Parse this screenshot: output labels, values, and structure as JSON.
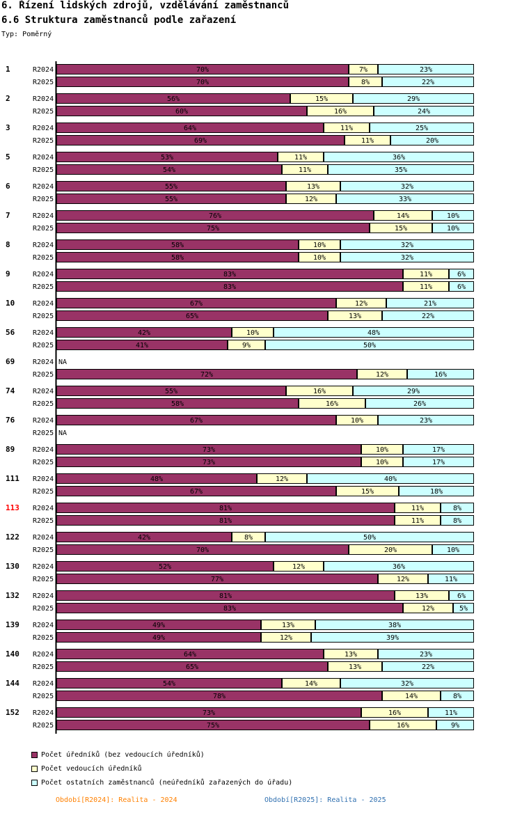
{
  "title": "6. Řízení lidských zdrojů, vzdělávání zaměstnanců",
  "subtitle": "6.6 Struktura zaměstnanců podle zařazení",
  "type_line": "Typ: Poměrný",
  "periods": [
    {
      "label": "Období[R2024]: Realita - 2024",
      "color": "#ff8000"
    },
    {
      "label": "Období[R2025]: Realita - 2025",
      "color": "#3070b0"
    }
  ],
  "legend": [
    {
      "label": "Počet úředníků (bez vedoucích úředníků)",
      "color": "#993366"
    },
    {
      "label": "Počet vedoucích úředníků",
      "color": "#ffffcc"
    },
    {
      "label": "Počet ostatních zaměstnanců (neúředníků zařazených do úřadu)",
      "color": "#ccffff"
    }
  ],
  "colors": {
    "series1": "#993366",
    "series2": "#ffffcc",
    "series3": "#ccffff",
    "highlight": "#ff0000"
  },
  "chart_data": {
    "type": "bar",
    "orientation": "horizontal",
    "stacked": true,
    "percent": true,
    "xlim": [
      0,
      100
    ],
    "series_names": [
      "Počet úředníků (bez vedoucích úředníků)",
      "Počet vedoucích úředníků",
      "Počet ostatních zaměstnanců (neúředníků zařazených do úřadu)"
    ],
    "na_label": "NA",
    "groups": [
      {
        "label": "1",
        "rows": [
          {
            "period": "R2024",
            "values": [
              70,
              7,
              23
            ]
          },
          {
            "period": "R2025",
            "values": [
              70,
              8,
              22
            ]
          }
        ]
      },
      {
        "label": "2",
        "rows": [
          {
            "period": "R2024",
            "values": [
              56,
              15,
              29
            ]
          },
          {
            "period": "R2025",
            "values": [
              60,
              16,
              24
            ]
          }
        ]
      },
      {
        "label": "3",
        "rows": [
          {
            "period": "R2024",
            "values": [
              64,
              11,
              25
            ]
          },
          {
            "period": "R2025",
            "values": [
              69,
              11,
              20
            ]
          }
        ]
      },
      {
        "label": "5",
        "rows": [
          {
            "period": "R2024",
            "values": [
              53,
              11,
              36
            ]
          },
          {
            "period": "R2025",
            "values": [
              54,
              11,
              35
            ]
          }
        ]
      },
      {
        "label": "6",
        "rows": [
          {
            "period": "R2024",
            "values": [
              55,
              13,
              32
            ]
          },
          {
            "period": "R2025",
            "values": [
              55,
              12,
              33
            ]
          }
        ]
      },
      {
        "label": "7",
        "rows": [
          {
            "period": "R2024",
            "values": [
              76,
              14,
              10
            ]
          },
          {
            "period": "R2025",
            "values": [
              75,
              15,
              10
            ]
          }
        ]
      },
      {
        "label": "8",
        "rows": [
          {
            "period": "R2024",
            "values": [
              58,
              10,
              32
            ]
          },
          {
            "period": "R2025",
            "values": [
              58,
              10,
              32
            ]
          }
        ]
      },
      {
        "label": "9",
        "rows": [
          {
            "period": "R2024",
            "values": [
              83,
              11,
              6
            ]
          },
          {
            "period": "R2025",
            "values": [
              83,
              11,
              6
            ]
          }
        ]
      },
      {
        "label": "10",
        "rows": [
          {
            "period": "R2024",
            "values": [
              67,
              12,
              21
            ]
          },
          {
            "period": "R2025",
            "values": [
              65,
              13,
              22
            ]
          }
        ]
      },
      {
        "label": "56",
        "rows": [
          {
            "period": "R2024",
            "values": [
              42,
              10,
              48
            ]
          },
          {
            "period": "R2025",
            "values": [
              41,
              9,
              50
            ]
          }
        ]
      },
      {
        "label": "69",
        "rows": [
          {
            "period": "R2024",
            "values": null
          },
          {
            "period": "R2025",
            "values": [
              72,
              12,
              16
            ]
          }
        ]
      },
      {
        "label": "74",
        "rows": [
          {
            "period": "R2024",
            "values": [
              55,
              16,
              29
            ]
          },
          {
            "period": "R2025",
            "values": [
              58,
              16,
              26
            ]
          }
        ]
      },
      {
        "label": "76",
        "rows": [
          {
            "period": "R2024",
            "values": [
              67,
              10,
              23
            ]
          },
          {
            "period": "R2025",
            "values": null
          }
        ]
      },
      {
        "label": "89",
        "rows": [
          {
            "period": "R2024",
            "values": [
              73,
              10,
              17
            ]
          },
          {
            "period": "R2025",
            "values": [
              73,
              10,
              17
            ]
          }
        ]
      },
      {
        "label": "111",
        "rows": [
          {
            "period": "R2024",
            "values": [
              48,
              12,
              40
            ]
          },
          {
            "period": "R2025",
            "values": [
              67,
              15,
              18
            ]
          }
        ]
      },
      {
        "label": "113",
        "highlight": true,
        "rows": [
          {
            "period": "R2024",
            "values": [
              81,
              11,
              8
            ]
          },
          {
            "period": "R2025",
            "values": [
              81,
              11,
              8
            ]
          }
        ]
      },
      {
        "label": "122",
        "rows": [
          {
            "period": "R2024",
            "values": [
              42,
              8,
              50
            ]
          },
          {
            "period": "R2025",
            "values": [
              70,
              20,
              10
            ]
          }
        ]
      },
      {
        "label": "130",
        "rows": [
          {
            "period": "R2024",
            "values": [
              52,
              12,
              36
            ]
          },
          {
            "period": "R2025",
            "values": [
              77,
              12,
              11
            ]
          }
        ]
      },
      {
        "label": "132",
        "rows": [
          {
            "period": "R2024",
            "values": [
              81,
              13,
              6
            ]
          },
          {
            "period": "R2025",
            "values": [
              83,
              12,
              5
            ]
          }
        ]
      },
      {
        "label": "139",
        "rows": [
          {
            "period": "R2024",
            "values": [
              49,
              13,
              38
            ]
          },
          {
            "period": "R2025",
            "values": [
              49,
              12,
              39
            ]
          }
        ]
      },
      {
        "label": "140",
        "rows": [
          {
            "period": "R2024",
            "values": [
              64,
              13,
              23
            ]
          },
          {
            "period": "R2025",
            "values": [
              65,
              13,
              22
            ]
          }
        ]
      },
      {
        "label": "144",
        "rows": [
          {
            "period": "R2024",
            "values": [
              54,
              14,
              32
            ]
          },
          {
            "period": "R2025",
            "values": [
              78,
              14,
              8
            ]
          }
        ]
      },
      {
        "label": "152",
        "rows": [
          {
            "period": "R2024",
            "values": [
              73,
              16,
              11
            ]
          },
          {
            "period": "R2025",
            "values": [
              75,
              16,
              9
            ]
          }
        ]
      }
    ]
  }
}
